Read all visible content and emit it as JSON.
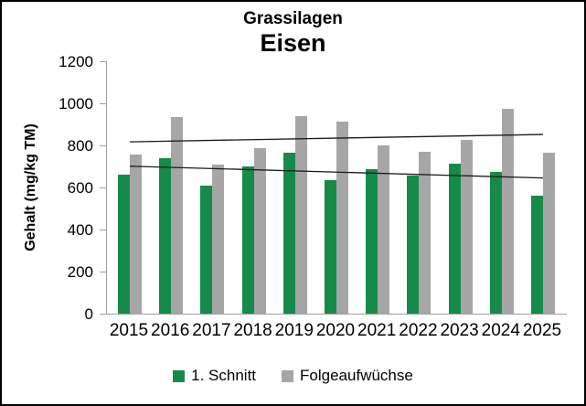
{
  "frame": {
    "background": "#ffffff",
    "border_color": "#000000"
  },
  "chart_data": {
    "type": "bar",
    "title": "Grassilagen",
    "subtitle": "Eisen",
    "ylabel": "Gehalt (mg/kg TM)",
    "xlabel": "",
    "categories": [
      "2015",
      "2016",
      "2017",
      "2018",
      "2019",
      "2020",
      "2021",
      "2022",
      "2023",
      "2024",
      "2025"
    ],
    "series": [
      {
        "name": "1. Schnitt",
        "color": "#168A4A",
        "values": [
          660,
          740,
          610,
          700,
          765,
          635,
          685,
          655,
          715,
          675,
          560
        ]
      },
      {
        "name": "Folgeaufwüchse",
        "color": "#A6A6A6",
        "values": [
          755,
          935,
          710,
          785,
          940,
          915,
          800,
          770,
          825,
          975,
          765
        ]
      }
    ],
    "trendlines": [
      {
        "series": "1. Schnitt",
        "start_value": 701,
        "end_value": 645,
        "color": "#1a1a1a"
      },
      {
        "series": "Folgeaufwüchse",
        "start_value": 817,
        "end_value": 852,
        "color": "#1a1a1a"
      }
    ],
    "ylim": [
      0,
      1200
    ],
    "yticks": [
      0,
      200,
      400,
      600,
      800,
      1000,
      1200
    ],
    "axis_color": "#a0a0a0",
    "grid": false,
    "legend_position": "bottom"
  }
}
